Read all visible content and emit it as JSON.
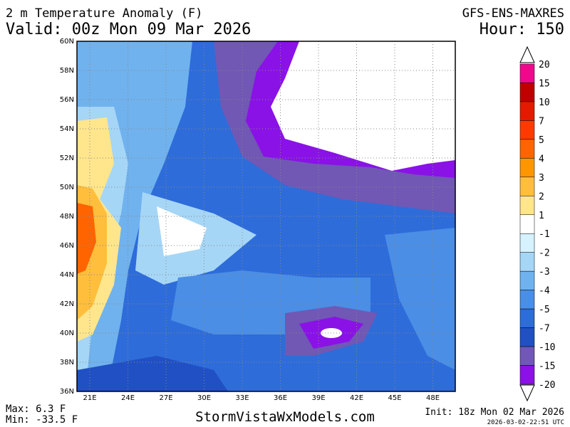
{
  "header": {
    "title": "2 m Temperature Anomaly (F)",
    "valid": "Valid: 00z Mon 09 Mar 2026",
    "model": "GFS-ENS-MAXRES",
    "hour": "Hour: 150"
  },
  "map": {
    "lat_labels": [
      "60N",
      "58N",
      "56N",
      "54N",
      "52N",
      "50N",
      "48N",
      "46N",
      "44N",
      "42N",
      "40N",
      "38N",
      "36N"
    ],
    "lon_labels": [
      "21E",
      "24E",
      "27E",
      "30E",
      "33E",
      "36E",
      "39E",
      "42E",
      "45E",
      "48E"
    ]
  },
  "colorbar": {
    "labels": [
      "20",
      "15",
      "10",
      "7",
      "5",
      "4",
      "3",
      "2",
      "1",
      "-1",
      "-2",
      "-3",
      "-4",
      "-5",
      "-7",
      "-10",
      "-15",
      "-20"
    ],
    "colors": [
      "#f0088c",
      "#c00000",
      "#e41a00",
      "#ff3a00",
      "#ff6400",
      "#ff9600",
      "#ffbe3c",
      "#ffe68c",
      "#ffffff",
      "#d6f2ff",
      "#a6d6f6",
      "#70b2ee",
      "#4a8ee6",
      "#2e6cda",
      "#2050c4",
      "#7058b4",
      "#8a12e6"
    ]
  },
  "footer": {
    "max": "Max: 6.3 F",
    "min": "Min: -33.5 F",
    "site": "StormVistaWxModels.com",
    "init": "Init: 18z Mon 02 Mar 2026",
    "stamp": "2026-03-02-22:51 UTC"
  }
}
